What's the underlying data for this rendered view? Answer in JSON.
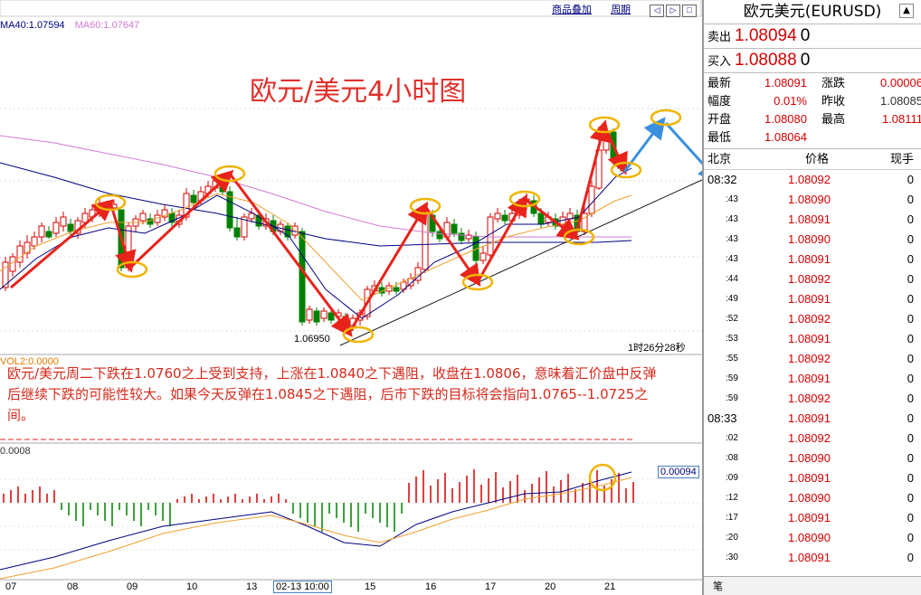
{
  "chart": {
    "ma_legend": [
      {
        "text": "MA40:1.07594",
        "color": "#000080"
      },
      {
        "text": "MA60:1.07647",
        "color": "#d27ad2"
      }
    ],
    "toolbar": {
      "overlay_label": "商品叠加",
      "period_label": "周期",
      "icon_symbols": [
        "◁",
        "▷",
        "□"
      ]
    },
    "big_title": "欧元/美元4小时图",
    "low_label": "1.06950",
    "timer": "1时26分28秒",
    "vol_label": "VOL2:0.0000",
    "comment": "欧元/美元周二下跌在1.0760之上受到支持，上涨在1.0840之下遇阻，收盘在1.0806，意味着汇价盘中反弹后继续下跌的可能性较大。如果今天反弹在1.0845之下遇阻，后市下跌的目标将会指向1.0765--1.0725之间。",
    "macd_label": "0.0008",
    "macd_value": "0.00094",
    "colors": {
      "up": "#d40000",
      "down": "#008000",
      "ma_short": "#000080",
      "ma_mid": "#f0a030",
      "ma_long": "#d27ad2",
      "arrow_red": "#e8231c",
      "arrow_blue": "#3a8fe0",
      "circle": "#f0b400"
    }
  },
  "xaxis": {
    "labels": [
      "07",
      "08",
      "09",
      "10",
      "13",
      "02-13 10:00",
      "15",
      "16",
      "17",
      "20",
      "21"
    ]
  },
  "quote": {
    "title": "欧元美元(EURUSD)",
    "up_icon": "▲",
    "sell_label": "卖出",
    "sell_price": "1.08094",
    "sell_vol": "0",
    "buy_label": "买入",
    "buy_price": "1.08088",
    "buy_vol": "0",
    "stats": [
      {
        "l1": "最新",
        "v1": "1.08091",
        "l2": "涨跌",
        "v2": "0.00006"
      },
      {
        "l1": "幅度",
        "v1": "0.01%",
        "l2": "昨收",
        "v2": "1.08085"
      },
      {
        "l1": "开盘",
        "v1": "1.08080",
        "l2": "最高",
        "v2": "1.08111"
      },
      {
        "l1": "最低",
        "v1": "1.08064",
        "l2": "",
        "v2": ""
      }
    ],
    "header": {
      "time": "北京",
      "price": "价格",
      "vol": "现手"
    },
    "ticks": [
      {
        "t": "08:32",
        "p": "1.08092",
        "v": "0"
      },
      {
        "t": ":43",
        "p": "1.08090",
        "v": "0"
      },
      {
        "t": ":43",
        "p": "1.08091",
        "v": "0"
      },
      {
        "t": ":43",
        "p": "1.08090",
        "v": "0"
      },
      {
        "t": ":43",
        "p": "1.08091",
        "v": "0"
      },
      {
        "t": ":44",
        "p": "1.08092",
        "v": "0"
      },
      {
        "t": ":49",
        "p": "1.08091",
        "v": "0"
      },
      {
        "t": ":52",
        "p": "1.08092",
        "v": "0"
      },
      {
        "t": ":53",
        "p": "1.08091",
        "v": "0"
      },
      {
        "t": ":55",
        "p": "1.08092",
        "v": "0"
      },
      {
        "t": ":59",
        "p": "1.08091",
        "v": "0"
      },
      {
        "t": ":59",
        "p": "1.08092",
        "v": "0"
      },
      {
        "t": "08:33",
        "p": "1.08091",
        "v": "0"
      },
      {
        "t": ":02",
        "p": "1.08092",
        "v": "0"
      },
      {
        "t": ":08",
        "p": "1.08090",
        "v": "0"
      },
      {
        "t": ":09",
        "p": "1.08091",
        "v": "0"
      },
      {
        "t": ":12",
        "p": "1.08090",
        "v": "0"
      },
      {
        "t": ":17",
        "p": "1.08091",
        "v": "0"
      },
      {
        "t": ":20",
        "p": "1.08090",
        "v": "0"
      },
      {
        "t": ":30",
        "p": "1.08091",
        "v": "0"
      }
    ],
    "footer_tab": "笔"
  }
}
